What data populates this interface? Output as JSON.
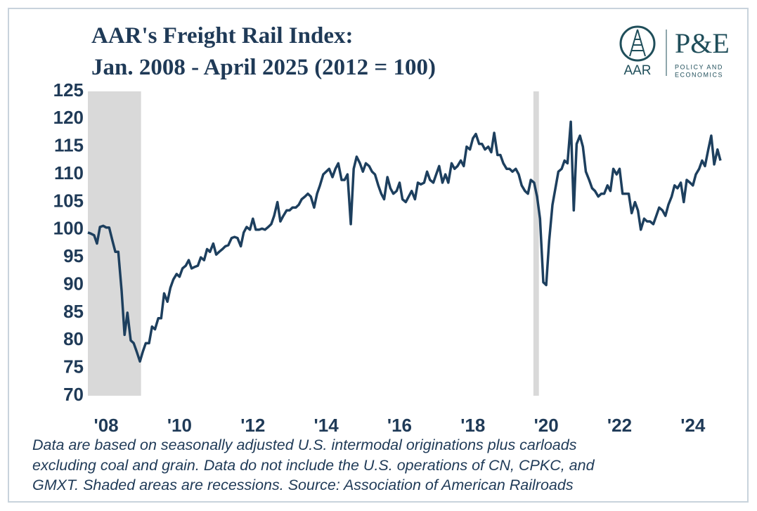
{
  "logo": {
    "left": "AAR",
    "right": "P&E",
    "tagline": [
      "POLICY AND",
      "ECONOMICS"
    ]
  },
  "chart_data": {
    "type": "line",
    "title": [
      "AAR's Freight Rail Index:",
      "Jan. 2008 - April 2025 (2012 = 100)"
    ],
    "note": [
      "Data are based on seasonally adjusted U.S. intermodal originations plus carloads",
      "excluding coal and grain. Data do not include the U.S. operations of CN, CPKC, and",
      "GMXT. Shaded areas are recessions. Source: Association of American Railroads"
    ],
    "xlim": [
      2008,
      2025.5
    ],
    "ylim": [
      70,
      125
    ],
    "yticks": [
      70,
      75,
      80,
      85,
      90,
      95,
      100,
      105,
      110,
      115,
      120,
      125
    ],
    "xticks": [
      {
        "value": 2008.5,
        "label": "'08"
      },
      {
        "value": 2010.5,
        "label": "'10"
      },
      {
        "value": 2012.5,
        "label": "'12"
      },
      {
        "value": 2014.5,
        "label": "'14"
      },
      {
        "value": 2016.5,
        "label": "'16"
      },
      {
        "value": 2018.5,
        "label": "'18"
      },
      {
        "value": 2020.5,
        "label": "'20"
      },
      {
        "value": 2022.5,
        "label": "'22"
      },
      {
        "value": 2024.5,
        "label": "'24"
      }
    ],
    "recessions": [
      [
        2008,
        2009.45
      ],
      [
        2020.15,
        2020.3
      ]
    ],
    "recession_color": "#d9d9d9",
    "grid": false,
    "series": [
      {
        "color": "#1d3f5e",
        "x": [
          2008,
          2008.08,
          2008.17,
          2008.25,
          2008.33,
          2008.42,
          2008.5,
          2008.58,
          2008.67,
          2008.75,
          2008.83,
          2008.92,
          2009,
          2009.08,
          2009.17,
          2009.25,
          2009.33,
          2009.42,
          2009.5,
          2009.58,
          2009.67,
          2009.75,
          2009.83,
          2009.92,
          2010,
          2010.08,
          2010.17,
          2010.25,
          2010.33,
          2010.42,
          2010.5,
          2010.58,
          2010.67,
          2010.75,
          2010.83,
          2010.92,
          2011,
          2011.08,
          2011.17,
          2011.25,
          2011.33,
          2011.42,
          2011.5,
          2011.58,
          2011.67,
          2011.75,
          2011.83,
          2011.92,
          2012,
          2012.08,
          2012.17,
          2012.25,
          2012.33,
          2012.42,
          2012.5,
          2012.58,
          2012.67,
          2012.75,
          2012.83,
          2012.92,
          2013,
          2013.08,
          2013.17,
          2013.25,
          2013.33,
          2013.42,
          2013.5,
          2013.58,
          2013.67,
          2013.75,
          2013.83,
          2013.92,
          2014,
          2014.08,
          2014.17,
          2014.25,
          2014.33,
          2014.42,
          2014.5,
          2014.58,
          2014.67,
          2014.75,
          2014.83,
          2014.92,
          2015,
          2015.08,
          2015.17,
          2015.25,
          2015.33,
          2015.42,
          2015.5,
          2015.58,
          2015.67,
          2015.75,
          2015.83,
          2015.92,
          2016,
          2016.08,
          2016.17,
          2016.25,
          2016.33,
          2016.42,
          2016.5,
          2016.58,
          2016.67,
          2016.75,
          2016.83,
          2016.92,
          2017,
          2017.08,
          2017.17,
          2017.25,
          2017.33,
          2017.42,
          2017.5,
          2017.58,
          2017.67,
          2017.75,
          2017.83,
          2017.92,
          2018,
          2018.08,
          2018.17,
          2018.25,
          2018.33,
          2018.42,
          2018.5,
          2018.58,
          2018.67,
          2018.75,
          2018.83,
          2018.92,
          2019,
          2019.08,
          2019.17,
          2019.25,
          2019.33,
          2019.42,
          2019.5,
          2019.58,
          2019.67,
          2019.75,
          2019.83,
          2019.92,
          2020,
          2020.08,
          2020.17,
          2020.25,
          2020.33,
          2020.42,
          2020.5,
          2020.58,
          2020.67,
          2020.75,
          2020.83,
          2020.92,
          2021,
          2021.08,
          2021.17,
          2021.25,
          2021.33,
          2021.42,
          2021.5,
          2021.58,
          2021.67,
          2021.75,
          2021.83,
          2021.92,
          2022,
          2022.08,
          2022.17,
          2022.25,
          2022.33,
          2022.42,
          2022.5,
          2022.58,
          2022.67,
          2022.75,
          2022.83,
          2022.92,
          2023,
          2023.08,
          2023.17,
          2023.25,
          2023.33,
          2023.42,
          2023.5,
          2023.58,
          2023.67,
          2023.75,
          2023.83,
          2023.92,
          2024,
          2024.08,
          2024.17,
          2024.25,
          2024.33,
          2024.42,
          2024.5,
          2024.58,
          2024.67,
          2024.75,
          2024.83,
          2024.92,
          2025,
          2025.08,
          2025.17,
          2025.25
        ],
        "values": [
          99.5,
          99.3,
          99,
          97.5,
          100.5,
          100.7,
          100.4,
          100.4,
          98,
          96,
          96,
          89,
          81,
          85,
          80,
          79.5,
          78,
          76.2,
          78,
          79.5,
          79.5,
          82.5,
          82,
          84,
          84,
          88.5,
          87,
          89.5,
          91,
          92,
          91.5,
          93,
          93.5,
          94.5,
          93,
          93.3,
          93.5,
          95,
          94.5,
          96.5,
          96,
          97.5,
          95.5,
          96,
          96.5,
          97,
          97.2,
          98.5,
          98.7,
          98.5,
          97,
          99.5,
          100.5,
          100,
          102,
          100,
          100,
          100.2,
          100,
          100.5,
          101,
          102.5,
          105,
          101.5,
          102.5,
          103.5,
          103.5,
          104,
          104,
          104.5,
          105.5,
          106,
          106.5,
          106,
          104,
          106.5,
          108,
          110,
          110.5,
          111,
          109.5,
          111,
          112,
          109,
          109,
          110,
          101,
          111,
          113.2,
          112,
          110.5,
          112,
          111.5,
          110.5,
          110,
          108,
          106.5,
          105.5,
          109.5,
          107.5,
          106.5,
          107,
          108.5,
          105.5,
          105,
          106,
          107,
          105.5,
          108.5,
          108.2,
          108.5,
          110.5,
          109,
          108.5,
          110,
          111.5,
          108.5,
          110,
          108.5,
          112,
          111,
          111.5,
          112.5,
          111.5,
          115,
          114.5,
          116.5,
          117.3,
          115.5,
          115.5,
          114.5,
          115,
          114,
          117.5,
          113.5,
          113.5,
          112,
          111,
          111,
          110.5,
          111,
          110,
          108,
          107,
          106.5,
          109,
          108.5,
          106,
          102,
          90.5,
          90,
          98,
          104.5,
          107.5,
          110.5,
          111,
          112.5,
          112,
          119.5,
          103.5,
          115.5,
          117,
          115,
          110.5,
          109,
          107.5,
          107,
          106,
          106.5,
          106.5,
          108,
          107,
          111,
          110,
          111,
          106.5,
          106.5,
          106.5,
          103,
          105,
          103.5,
          100,
          102,
          101.5,
          101.5,
          101,
          102.5,
          104,
          103.5,
          102.5,
          104.5,
          106,
          108,
          107.5,
          108.5,
          105,
          109,
          108.5,
          108,
          110,
          111,
          112.5,
          111.5,
          114.5,
          117,
          111.8,
          114.5,
          112.5
        ]
      }
    ]
  }
}
